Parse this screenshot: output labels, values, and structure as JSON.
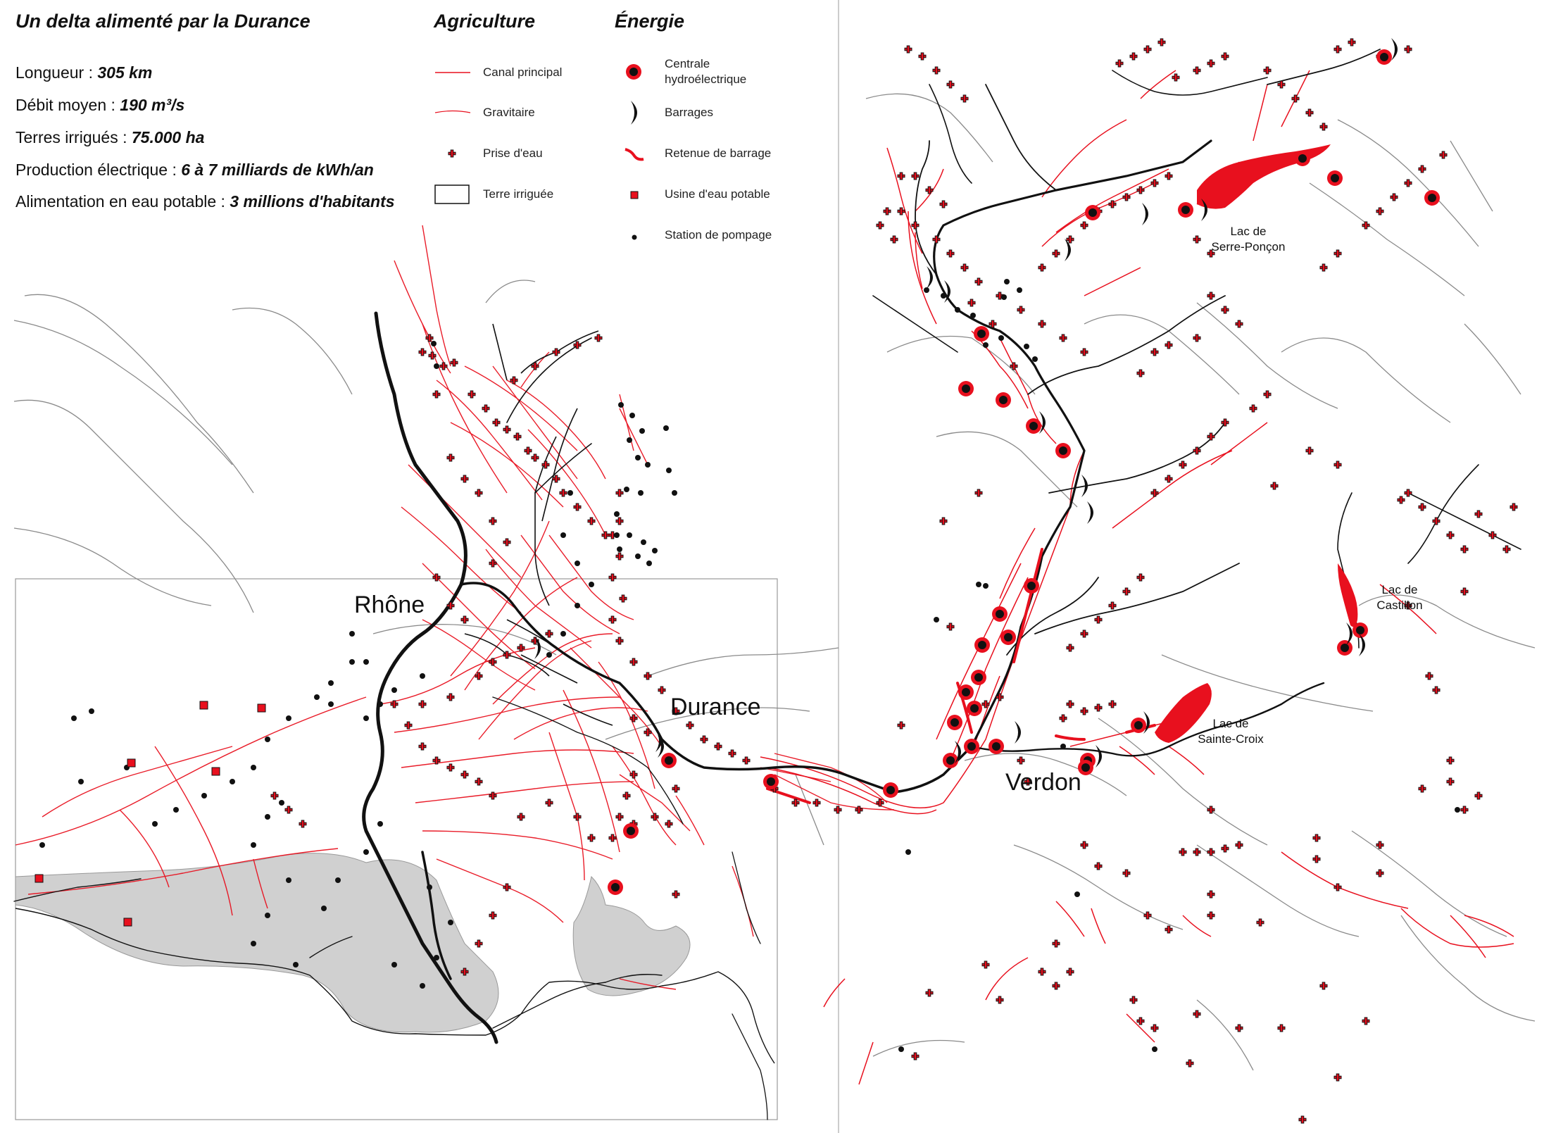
{
  "header": {
    "title": "Un delta alimenté par la Durance",
    "stats": [
      {
        "label": "Longueur : ",
        "value": "305 km"
      },
      {
        "label": "Débit moyen : ",
        "value": "190 m³/s"
      },
      {
        "label": "Terres irrigués : ",
        "value": "75.000 ha"
      },
      {
        "label": "Production électrique : ",
        "value": "6 à 7 milliards de kWh/an"
      },
      {
        "label": "Alimentation en eau potable : ",
        "value": "3 millions d'habitants"
      }
    ]
  },
  "legend": {
    "agriculture": {
      "heading": "Agriculture",
      "items": [
        {
          "label": "Canal principal",
          "icon": "canal-principal-line"
        },
        {
          "label": "Gravitaire",
          "icon": "gravitaire-line"
        },
        {
          "label": "Prise d'eau",
          "icon": "cross-icon"
        },
        {
          "label": "Terre irriguée",
          "icon": "rectangle-icon"
        }
      ]
    },
    "energie": {
      "heading": "Énergie",
      "items": [
        {
          "label": "Centrale\nhydroélectrique",
          "icon": "circle-icon"
        },
        {
          "label": "Barrages",
          "icon": "crescent-icon"
        },
        {
          "label": "Retenue de barrage",
          "icon": "red-squiggle-icon"
        },
        {
          "label": "Usine d'eau potable",
          "icon": "square-icon"
        },
        {
          "label": "Station de pompage",
          "icon": "dot-icon"
        }
      ]
    }
  },
  "places": {
    "rhone": "Rhône",
    "durance": "Durance",
    "verdon": "Verdon",
    "lake_serre_poncon": "Lac de\nSerre-Ponçon",
    "lake_castillon": "Lac de\nCastillon",
    "lake_sainte_croix": "Lac de\nSainte-Croix"
  },
  "colors": {
    "red": "#e8101e",
    "black": "#111111",
    "grey_river": "#8a8a8a",
    "sea_land_grey": "#d0d0d0"
  }
}
